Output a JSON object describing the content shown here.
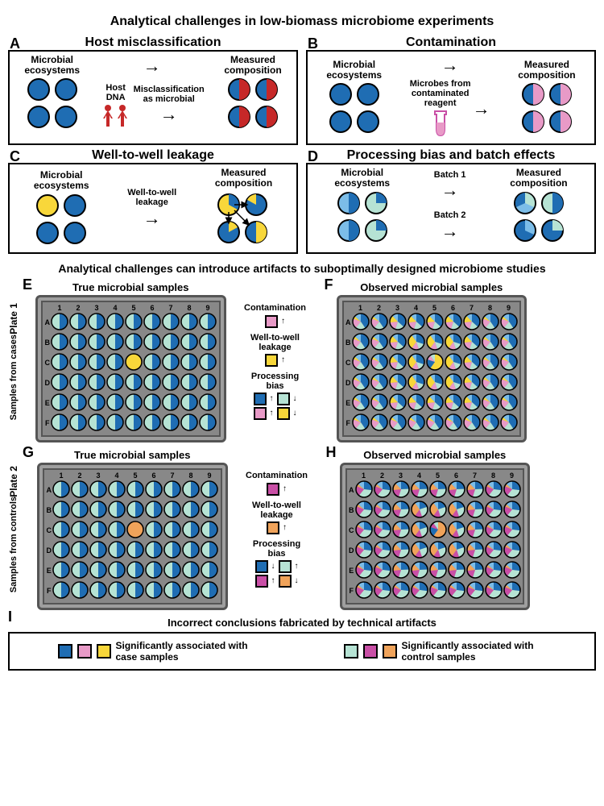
{
  "colors": {
    "blue": "#1f6db3",
    "red": "#c62828",
    "pink": "#e89ac7",
    "magenta": "#c94fa6",
    "yellow": "#f8d73a",
    "mint": "#b6e3d4",
    "lightblue": "#7cbde8",
    "orange": "#f0a35a",
    "black": "#000000"
  },
  "titles": {
    "main": "Analytical challenges in low-biomass microbiome experiments",
    "section2": "Analytical challenges can introduce artifacts to suboptimally designed microbiome studies",
    "bottom": "Incorrect conclusions fabricated by technical artifacts"
  },
  "panels": {
    "A": {
      "title": "Host misclassification",
      "leftLabel": "Microbial\necosystems",
      "rightLabel": "Measured\ncomposition",
      "midLabel": "Misclassification\nas microbial",
      "hostLabel": "Host\nDNA"
    },
    "B": {
      "title": "Contamination",
      "leftLabel": "Microbial\necosystems",
      "rightLabel": "Measured\ncomposition",
      "reagentLabel": "Microbes from\ncontaminated\nreagent"
    },
    "C": {
      "title": "Well-to-well leakage",
      "leftLabel": "Microbial\necosystems",
      "rightLabel": "Measured\ncomposition",
      "midLabel": "Well-to-well\nleakage"
    },
    "D": {
      "title": "Processing bias and batch effects",
      "leftLabel": "Microbial\necosystems",
      "rightLabel": "Measured\ncomposition",
      "b1": "Batch 1",
      "b2": "Batch 2"
    }
  },
  "plates": {
    "cols": [
      "1",
      "2",
      "3",
      "4",
      "5",
      "6",
      "7",
      "8",
      "9"
    ],
    "rows": [
      "A",
      "B",
      "C",
      "D",
      "E",
      "F"
    ],
    "plate1": {
      "label": "Plate 1",
      "sub": "Samples from cases"
    },
    "plate2": {
      "label": "Plate 2",
      "sub": "Samples from controls"
    },
    "trueTitle": "True microbial samples",
    "obsTitle": "Observed microbial samples"
  },
  "legend": {
    "contam": "Contamination",
    "leak": "Well-to-well\nleakage",
    "bias": "Processing\nbias"
  },
  "bottom": {
    "caseText": "Significantly associated with case samples",
    "controlText": "Significantly associated with control samples"
  }
}
